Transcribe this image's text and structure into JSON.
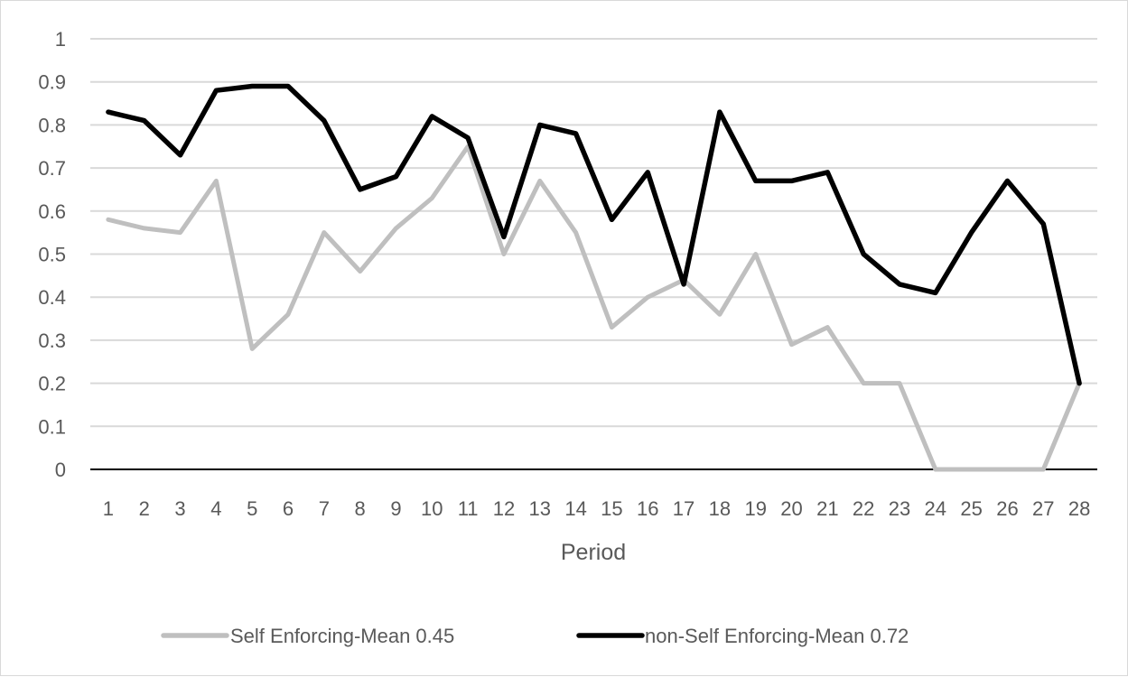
{
  "chart_data": {
    "type": "line",
    "title": "",
    "xlabel": "Period",
    "ylabel": "",
    "x": [
      1,
      2,
      3,
      4,
      5,
      6,
      7,
      8,
      9,
      10,
      11,
      12,
      13,
      14,
      15,
      16,
      17,
      18,
      19,
      20,
      21,
      22,
      23,
      24,
      25,
      26,
      27,
      28
    ],
    "ylim": [
      0,
      1
    ],
    "yticks": [
      0,
      0.1,
      0.2,
      0.3,
      0.4,
      0.5,
      0.6,
      0.7,
      0.8,
      0.9,
      1
    ],
    "grid": true,
    "legend_position": "bottom",
    "series": [
      {
        "name": "Self Enforcing-Mean 0.45",
        "color": "#bfbfbf",
        "values": [
          0.58,
          0.56,
          0.55,
          0.67,
          0.28,
          0.36,
          0.55,
          0.46,
          0.56,
          0.63,
          0.75,
          0.5,
          0.67,
          0.55,
          0.33,
          0.4,
          0.44,
          0.36,
          0.5,
          0.29,
          0.33,
          0.2,
          0.2,
          0.0,
          0.0,
          0.0,
          0.0,
          0.2
        ]
      },
      {
        "name": "non-Self Enforcing-Mean 0.72",
        "color": "#000000",
        "values": [
          0.83,
          0.81,
          0.73,
          0.88,
          0.89,
          0.89,
          0.81,
          0.65,
          0.68,
          0.82,
          0.77,
          0.54,
          0.8,
          0.78,
          0.58,
          0.69,
          0.43,
          0.83,
          0.67,
          0.67,
          0.69,
          0.5,
          0.43,
          0.41,
          0.55,
          0.67,
          0.57,
          0.2
        ]
      }
    ]
  }
}
